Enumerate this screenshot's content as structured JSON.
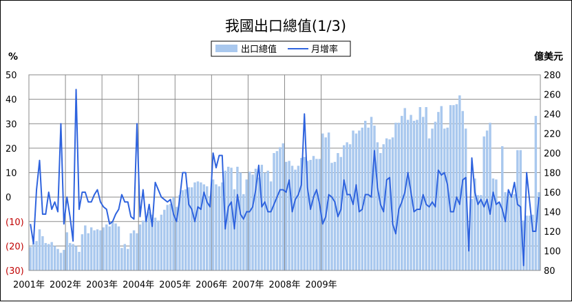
{
  "chart_data": {
    "type": "bar",
    "title": "我國出口總值(1/3)",
    "left_unit": "%",
    "right_unit": "億美元",
    "x_tick_labels": [
      "2001年",
      "2002年",
      "2003年",
      "2004年",
      "2005年",
      "2006年",
      "2007年",
      "2008年",
      "2009年"
    ],
    "left_axis": {
      "min": -30,
      "max": 50,
      "step": 10,
      "labels": [
        "50",
        "40",
        "30",
        "20",
        "10",
        "0",
        "(10)",
        "(20)",
        "(30)"
      ]
    },
    "right_axis": {
      "min": 80,
      "max": 280,
      "step": 20,
      "labels": [
        "280",
        "260",
        "240",
        "220",
        "200",
        "180",
        "160",
        "140",
        "120",
        "100",
        "80"
      ]
    },
    "grid": true,
    "legend_position": "top",
    "series": [
      {
        "name": "出口總值",
        "kind": "bar",
        "axis": "right",
        "color": "#a9c8ee",
        "values": [
          104,
          108,
          110,
          122,
          115,
          108,
          107,
          109,
          105,
          102,
          98,
          101,
          119,
          108,
          107,
          105,
          99,
          117,
          126,
          118,
          124,
          121,
          122,
          121,
          124,
          127,
          125,
          130,
          128,
          125,
          103,
          107,
          102,
          118,
          121,
          118,
          127,
          131,
          133,
          140,
          137,
          134,
          131,
          137,
          142,
          147,
          148,
          155,
          145,
          157,
          162,
          163,
          165,
          165,
          170,
          171,
          170,
          168,
          166,
          156,
          173,
          168,
          166,
          170,
          182,
          186,
          185,
          163,
          186,
          180,
          158,
          173,
          181,
          178,
          184,
          175,
          188,
          180,
          182,
          171,
          200,
          202,
          206,
          210,
          191,
          192,
          187,
          183,
          187,
          195,
          196,
          192,
          193,
          197,
          194,
          194,
          220,
          216,
          221,
          190,
          191,
          200,
          196,
          208,
          211,
          209,
          223,
          220,
          223,
          226,
          233,
          226,
          237,
          228,
          211,
          200,
          209,
          215,
          214,
          216,
          231,
          231,
          238,
          246,
          234,
          239,
          233,
          234,
          247,
          237,
          247,
          215,
          225,
          232,
          242,
          248,
          225,
          226,
          249,
          249,
          250,
          259,
          243,
          225,
          123,
          153,
          174,
          157,
          157,
          217,
          223,
          231,
          174,
          173,
          149,
          207,
          160,
          158,
          155,
          158,
          203,
          203,
          131,
          136,
          136,
          137,
          238,
          160
        ]
      },
      {
        "name": "月增率",
        "kind": "line",
        "axis": "left",
        "color": "#2e63de",
        "values": [
          -11,
          -19,
          3,
          15,
          -7,
          -7,
          2,
          -5,
          -2,
          -6,
          30,
          -11,
          0,
          -8,
          -18,
          44,
          -5,
          2,
          2,
          -2,
          -2,
          1,
          3,
          -2,
          -4,
          -5,
          -11,
          -10,
          -7,
          -5,
          1,
          -2,
          -2,
          -8,
          -9,
          30,
          -8,
          3,
          -10,
          -3,
          -12,
          6,
          3,
          0,
          -1,
          -2,
          -1,
          -7,
          -10,
          -1,
          10,
          10,
          -3,
          -5,
          -10,
          -4,
          -5,
          2,
          -2,
          -4,
          18,
          12,
          17,
          17,
          -13,
          -4,
          -2,
          -13,
          1,
          -7,
          -9,
          -6,
          -6,
          -4,
          3,
          13,
          -4,
          -2,
          -6,
          -6,
          -3,
          0,
          3,
          3,
          2,
          7,
          -6,
          -1,
          1,
          5,
          34,
          4,
          -5,
          0,
          3,
          -3,
          -11,
          -8,
          1,
          0,
          -2,
          -8,
          -5,
          7,
          1,
          1,
          -3,
          5,
          -6,
          -5,
          1,
          1,
          0,
          19,
          4,
          -3,
          -6,
          7,
          8,
          -11,
          -15,
          -5,
          -2,
          2,
          10,
          2,
          -6,
          -5,
          -5,
          1,
          -3,
          -4,
          -2,
          -4,
          11,
          9,
          10,
          5,
          -6,
          -6,
          0,
          -3,
          7,
          8,
          -22,
          16,
          2,
          -3,
          -1,
          -4,
          -1,
          -7,
          2,
          -3,
          -2,
          -5,
          -10,
          3,
          0,
          6,
          -3,
          -4,
          -28,
          10,
          -2,
          -14,
          -14,
          0
        ]
      }
    ]
  }
}
